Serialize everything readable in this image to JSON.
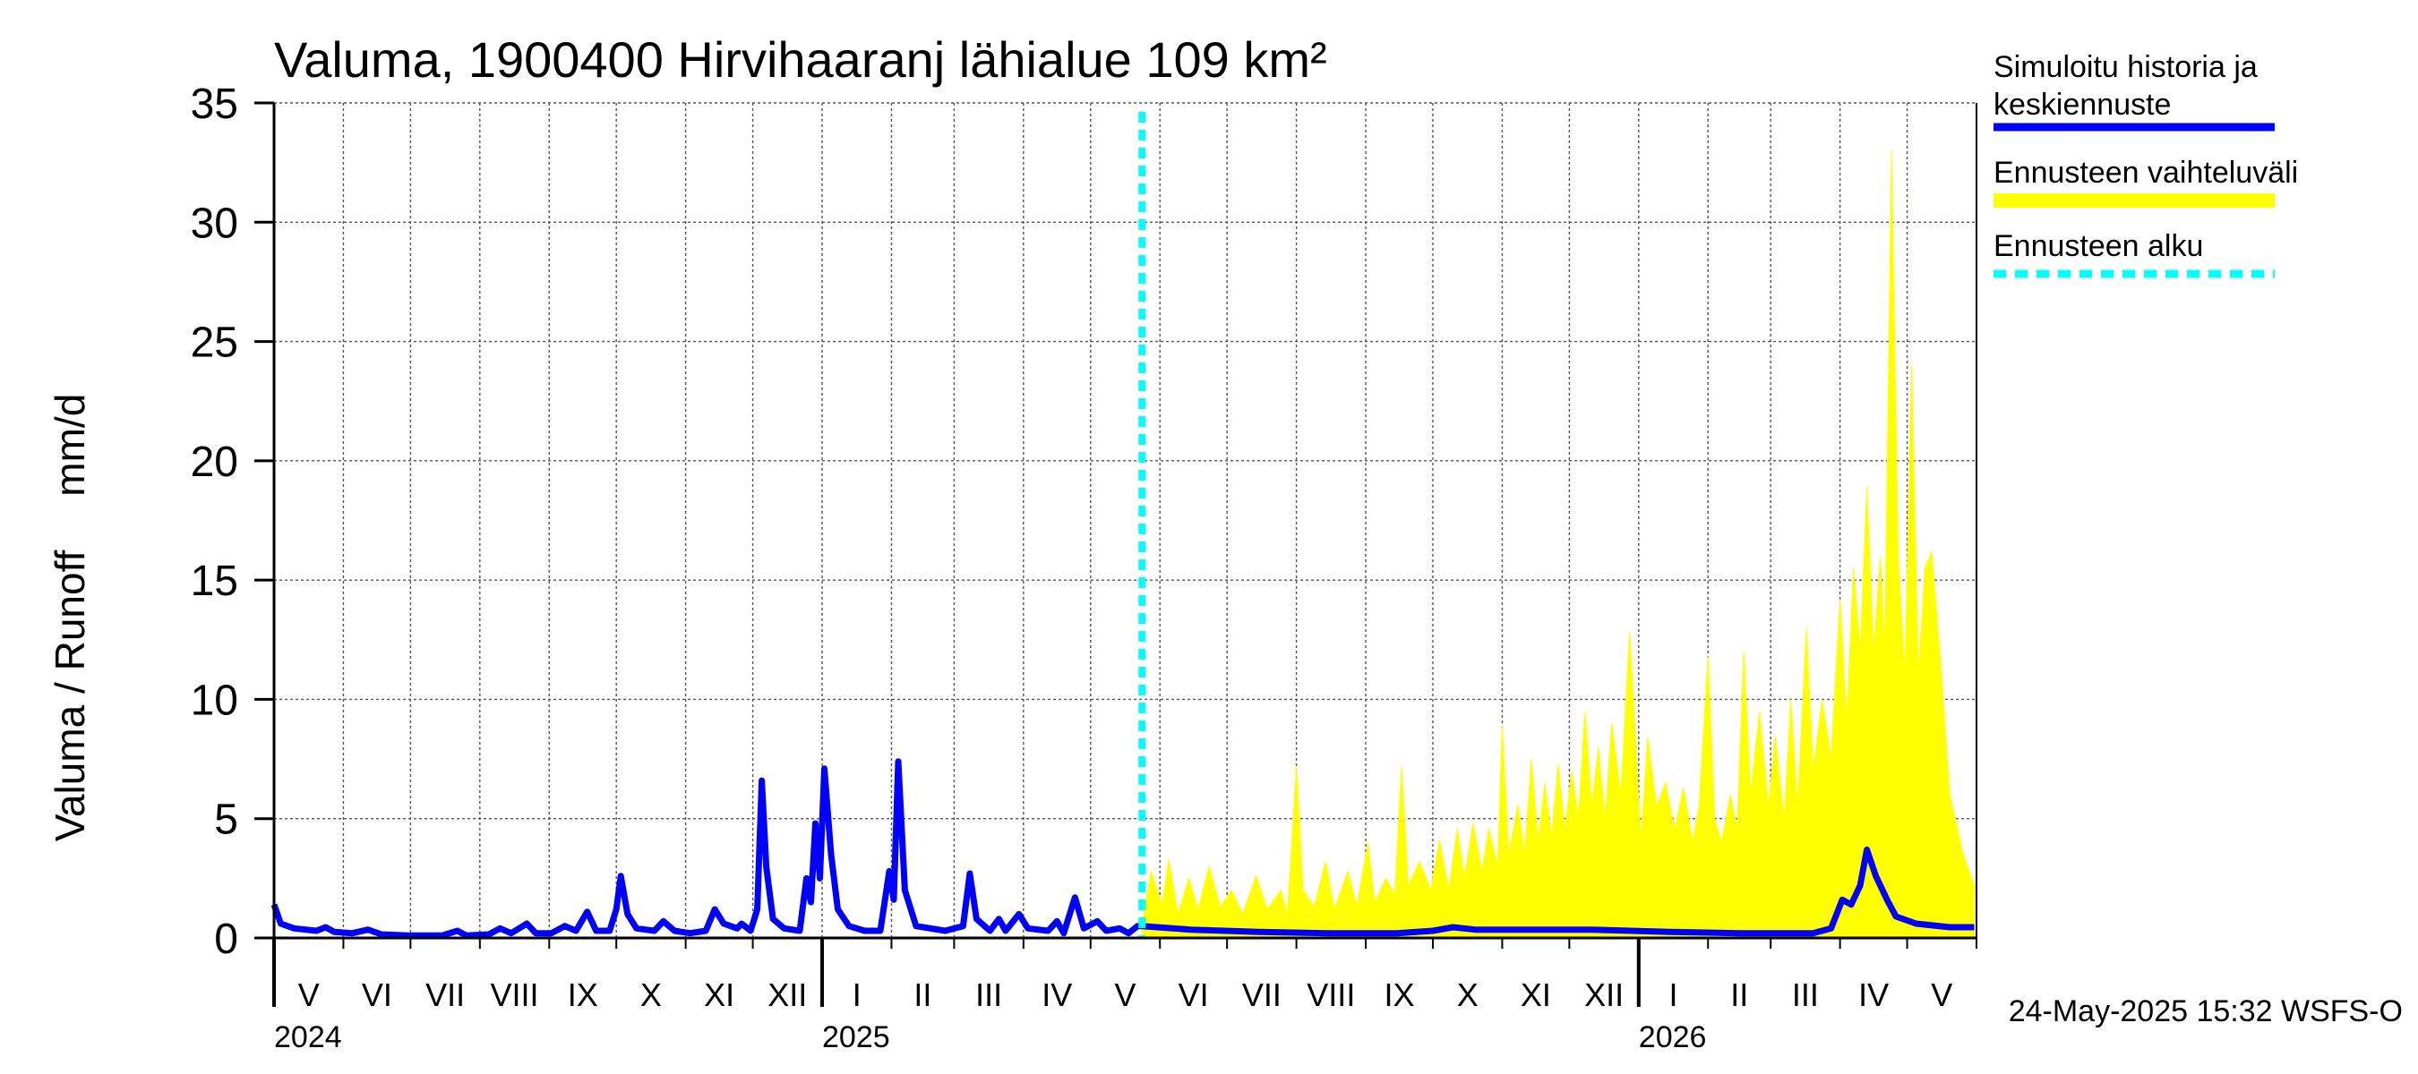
{
  "chart_data": {
    "type": "area",
    "title": "Valuma, 1900400 Hirvihaaranj lähialue 109 km²",
    "ylabel_fi": "Valuma / Runoff",
    "ylabel_unit": "mm/d",
    "ylim": [
      0,
      35
    ],
    "yticks": [
      "0",
      "5",
      "10",
      "15",
      "20",
      "25",
      "30",
      "35"
    ],
    "x_range": [
      "2024-05-01",
      "2026-05-31"
    ],
    "months": [
      "V",
      "VI",
      "VII",
      "VIII",
      "IX",
      "X",
      "XI",
      "XII",
      "I",
      "II",
      "III",
      "IV",
      "V",
      "VI",
      "VII",
      "VIII",
      "IX",
      "X",
      "XI",
      "XII",
      "I",
      "II",
      "III",
      "IV",
      "V"
    ],
    "years": [
      {
        "label": "2024",
        "date": "2024-05-01"
      },
      {
        "label": "2025",
        "date": "2025-01-01"
      },
      {
        "label": "2026",
        "date": "2026-01-01"
      }
    ],
    "forecast_start": "2025-05-24",
    "grid": true,
    "legend_position": "right",
    "legend": [
      {
        "label_line1": "Simuloitu historia ja",
        "label_line2": "keskiennuste",
        "color": "#0000ff",
        "style": "line"
      },
      {
        "label_line1": "Ennusteen vaihteluväli",
        "label_line2": "",
        "color": "#ffff00",
        "style": "band"
      },
      {
        "label_line1": "Ennusteen alku",
        "label_line2": "",
        "color": "#00ffff",
        "style": "dashed"
      }
    ],
    "series": [
      {
        "name": "Simuloitu historia ja keskiennuste",
        "color": "#0000ff",
        "points": [
          [
            "2024-05-01",
            1.4
          ],
          [
            "2024-05-04",
            0.6
          ],
          [
            "2024-05-10",
            0.4
          ],
          [
            "2024-05-20",
            0.3
          ],
          [
            "2024-05-24",
            0.45
          ],
          [
            "2024-05-28",
            0.25
          ],
          [
            "2024-06-05",
            0.2
          ],
          [
            "2024-06-12",
            0.35
          ],
          [
            "2024-06-18",
            0.15
          ],
          [
            "2024-06-30",
            0.1
          ],
          [
            "2024-07-15",
            0.1
          ],
          [
            "2024-07-22",
            0.3
          ],
          [
            "2024-07-26",
            0.1
          ],
          [
            "2024-08-05",
            0.15
          ],
          [
            "2024-08-10",
            0.4
          ],
          [
            "2024-08-15",
            0.2
          ],
          [
            "2024-08-22",
            0.6
          ],
          [
            "2024-08-26",
            0.2
          ],
          [
            "2024-09-02",
            0.2
          ],
          [
            "2024-09-08",
            0.5
          ],
          [
            "2024-09-13",
            0.3
          ],
          [
            "2024-09-18",
            1.1
          ],
          [
            "2024-09-22",
            0.3
          ],
          [
            "2024-09-28",
            0.3
          ],
          [
            "2024-10-01",
            1.2
          ],
          [
            "2024-10-03",
            2.6
          ],
          [
            "2024-10-06",
            1.0
          ],
          [
            "2024-10-10",
            0.4
          ],
          [
            "2024-10-18",
            0.3
          ],
          [
            "2024-10-22",
            0.7
          ],
          [
            "2024-10-27",
            0.3
          ],
          [
            "2024-11-03",
            0.2
          ],
          [
            "2024-11-10",
            0.3
          ],
          [
            "2024-11-14",
            1.2
          ],
          [
            "2024-11-18",
            0.6
          ],
          [
            "2024-11-24",
            0.4
          ],
          [
            "2024-11-26",
            0.6
          ],
          [
            "2024-11-30",
            0.3
          ],
          [
            "2024-12-03",
            1.2
          ],
          [
            "2024-12-05",
            6.6
          ],
          [
            "2024-12-07",
            3.0
          ],
          [
            "2024-12-10",
            0.8
          ],
          [
            "2024-12-15",
            0.4
          ],
          [
            "2024-12-22",
            0.3
          ],
          [
            "2024-12-25",
            2.5
          ],
          [
            "2024-12-27",
            1.5
          ],
          [
            "2024-12-29",
            4.8
          ],
          [
            "2024-12-31",
            2.5
          ],
          [
            "2025-01-02",
            7.1
          ],
          [
            "2025-01-05",
            3.5
          ],
          [
            "2025-01-08",
            1.2
          ],
          [
            "2025-01-13",
            0.5
          ],
          [
            "2025-01-20",
            0.3
          ],
          [
            "2025-01-27",
            0.3
          ],
          [
            "2025-01-31",
            2.8
          ],
          [
            "2025-02-02",
            1.6
          ],
          [
            "2025-02-04",
            7.4
          ],
          [
            "2025-02-07",
            2.0
          ],
          [
            "2025-02-12",
            0.5
          ],
          [
            "2025-02-25",
            0.3
          ],
          [
            "2025-03-05",
            0.5
          ],
          [
            "2025-03-08",
            2.7
          ],
          [
            "2025-03-11",
            0.8
          ],
          [
            "2025-03-17",
            0.3
          ],
          [
            "2025-03-21",
            0.8
          ],
          [
            "2025-03-24",
            0.3
          ],
          [
            "2025-03-30",
            1.0
          ],
          [
            "2025-04-03",
            0.4
          ],
          [
            "2025-04-12",
            0.3
          ],
          [
            "2025-04-16",
            0.7
          ],
          [
            "2025-04-19",
            0.2
          ],
          [
            "2025-04-24",
            1.7
          ],
          [
            "2025-04-28",
            0.4
          ],
          [
            "2025-05-04",
            0.7
          ],
          [
            "2025-05-08",
            0.3
          ],
          [
            "2025-05-14",
            0.4
          ],
          [
            "2025-05-18",
            0.2
          ],
          [
            "2025-05-22",
            0.5
          ],
          [
            "2025-05-24",
            0.5
          ],
          [
            "2025-06-15",
            0.35
          ],
          [
            "2025-07-15",
            0.25
          ],
          [
            "2025-08-15",
            0.2
          ],
          [
            "2025-09-15",
            0.2
          ],
          [
            "2025-10-01",
            0.3
          ],
          [
            "2025-10-10",
            0.45
          ],
          [
            "2025-10-20",
            0.35
          ],
          [
            "2025-11-10",
            0.35
          ],
          [
            "2025-12-10",
            0.35
          ],
          [
            "2026-01-15",
            0.25
          ],
          [
            "2026-02-15",
            0.2
          ],
          [
            "2026-03-20",
            0.2
          ],
          [
            "2026-03-28",
            0.4
          ],
          [
            "2026-04-02",
            1.6
          ],
          [
            "2026-04-06",
            1.4
          ],
          [
            "2026-04-10",
            2.2
          ],
          [
            "2026-04-13",
            3.7
          ],
          [
            "2026-04-17",
            2.6
          ],
          [
            "2026-04-22",
            1.6
          ],
          [
            "2026-04-26",
            0.9
          ],
          [
            "2026-05-05",
            0.6
          ],
          [
            "2026-05-20",
            0.45
          ],
          [
            "2026-05-31",
            0.45
          ]
        ]
      },
      {
        "name": "Ennusteen vaihteluväli",
        "color": "#ffff00",
        "upper": [
          [
            "2025-05-24",
            0.5
          ],
          [
            "2025-05-28",
            2.8
          ],
          [
            "2025-06-02",
            1.4
          ],
          [
            "2025-06-05",
            3.3
          ],
          [
            "2025-06-09",
            1.0
          ],
          [
            "2025-06-14",
            2.5
          ],
          [
            "2025-06-18",
            1.2
          ],
          [
            "2025-06-23",
            3.0
          ],
          [
            "2025-06-28",
            1.3
          ],
          [
            "2025-07-03",
            2.0
          ],
          [
            "2025-07-08",
            1.0
          ],
          [
            "2025-07-14",
            2.6
          ],
          [
            "2025-07-19",
            1.2
          ],
          [
            "2025-07-25",
            2.0
          ],
          [
            "2025-07-28",
            1.0
          ],
          [
            "2025-08-01",
            7.2
          ],
          [
            "2025-08-04",
            2.0
          ],
          [
            "2025-08-09",
            1.3
          ],
          [
            "2025-08-14",
            3.2
          ],
          [
            "2025-08-18",
            1.2
          ],
          [
            "2025-08-24",
            2.8
          ],
          [
            "2025-08-28",
            1.3
          ],
          [
            "2025-09-02",
            4.0
          ],
          [
            "2025-09-05",
            1.5
          ],
          [
            "2025-09-10",
            2.5
          ],
          [
            "2025-09-14",
            1.8
          ],
          [
            "2025-09-17",
            7.2
          ],
          [
            "2025-09-20",
            2.2
          ],
          [
            "2025-09-25",
            3.2
          ],
          [
            "2025-09-30",
            2.0
          ],
          [
            "2025-10-04",
            4.1
          ],
          [
            "2025-10-08",
            2.0
          ],
          [
            "2025-10-12",
            4.6
          ],
          [
            "2025-10-15",
            2.5
          ],
          [
            "2025-10-19",
            4.8
          ],
          [
            "2025-10-23",
            2.8
          ],
          [
            "2025-10-26",
            4.6
          ],
          [
            "2025-10-30",
            3.0
          ],
          [
            "2025-11-01",
            8.9
          ],
          [
            "2025-11-04",
            3.5
          ],
          [
            "2025-11-08",
            5.6
          ],
          [
            "2025-11-11",
            3.5
          ],
          [
            "2025-11-14",
            7.5
          ],
          [
            "2025-11-17",
            4.0
          ],
          [
            "2025-11-20",
            6.5
          ],
          [
            "2025-11-23",
            4.2
          ],
          [
            "2025-11-26",
            7.3
          ],
          [
            "2025-11-29",
            4.5
          ],
          [
            "2025-12-02",
            7.0
          ],
          [
            "2025-12-05",
            5.0
          ],
          [
            "2025-12-08",
            9.5
          ],
          [
            "2025-12-11",
            5.5
          ],
          [
            "2025-12-14",
            8.0
          ],
          [
            "2025-12-17",
            5.0
          ],
          [
            "2025-12-20",
            9.0
          ],
          [
            "2025-12-24",
            6.0
          ],
          [
            "2025-12-28",
            12.8
          ],
          [
            "2026-01-02",
            4.0
          ],
          [
            "2026-01-05",
            8.4
          ],
          [
            "2026-01-09",
            5.5
          ],
          [
            "2026-01-13",
            6.5
          ],
          [
            "2026-01-17",
            4.5
          ],
          [
            "2026-01-21",
            6.3
          ],
          [
            "2026-01-25",
            4.0
          ],
          [
            "2026-01-28",
            5.5
          ],
          [
            "2026-02-01",
            11.8
          ],
          [
            "2026-02-04",
            5.0
          ],
          [
            "2026-02-07",
            4.0
          ],
          [
            "2026-02-11",
            6.0
          ],
          [
            "2026-02-14",
            4.5
          ],
          [
            "2026-02-17",
            12.0
          ],
          [
            "2026-02-20",
            6.0
          ],
          [
            "2026-02-24",
            9.5
          ],
          [
            "2026-02-28",
            5.5
          ],
          [
            "2026-03-03",
            8.5
          ],
          [
            "2026-03-07",
            5.0
          ],
          [
            "2026-03-10",
            10.0
          ],
          [
            "2026-03-13",
            5.5
          ],
          [
            "2026-03-17",
            13.0
          ],
          [
            "2026-03-20",
            7.0
          ],
          [
            "2026-03-24",
            10.0
          ],
          [
            "2026-03-28",
            7.5
          ],
          [
            "2026-04-01",
            14.2
          ],
          [
            "2026-04-04",
            9.0
          ],
          [
            "2026-04-07",
            15.5
          ],
          [
            "2026-04-10",
            12.0
          ],
          [
            "2026-04-13",
            18.9
          ],
          [
            "2026-04-16",
            12.0
          ],
          [
            "2026-04-19",
            16.0
          ],
          [
            "2026-04-21",
            12.0
          ],
          [
            "2026-04-24",
            33.0
          ],
          [
            "2026-04-27",
            16.0
          ],
          [
            "2026-04-30",
            11.0
          ],
          [
            "2026-05-03",
            24.0
          ],
          [
            "2026-05-06",
            11.0
          ],
          [
            "2026-05-09",
            15.5
          ],
          [
            "2026-05-12",
            16.2
          ],
          [
            "2026-05-16",
            11.5
          ],
          [
            "2026-05-20",
            6.0
          ],
          [
            "2026-05-23",
            4.8
          ],
          [
            "2026-05-26",
            3.5
          ],
          [
            "2026-05-31",
            2.2
          ]
        ],
        "lower": [
          [
            "2025-05-24",
            0.0
          ],
          [
            "2026-05-31",
            0.0
          ]
        ]
      }
    ]
  },
  "timestamp": "24-May-2025 15:32 WSFS-O"
}
